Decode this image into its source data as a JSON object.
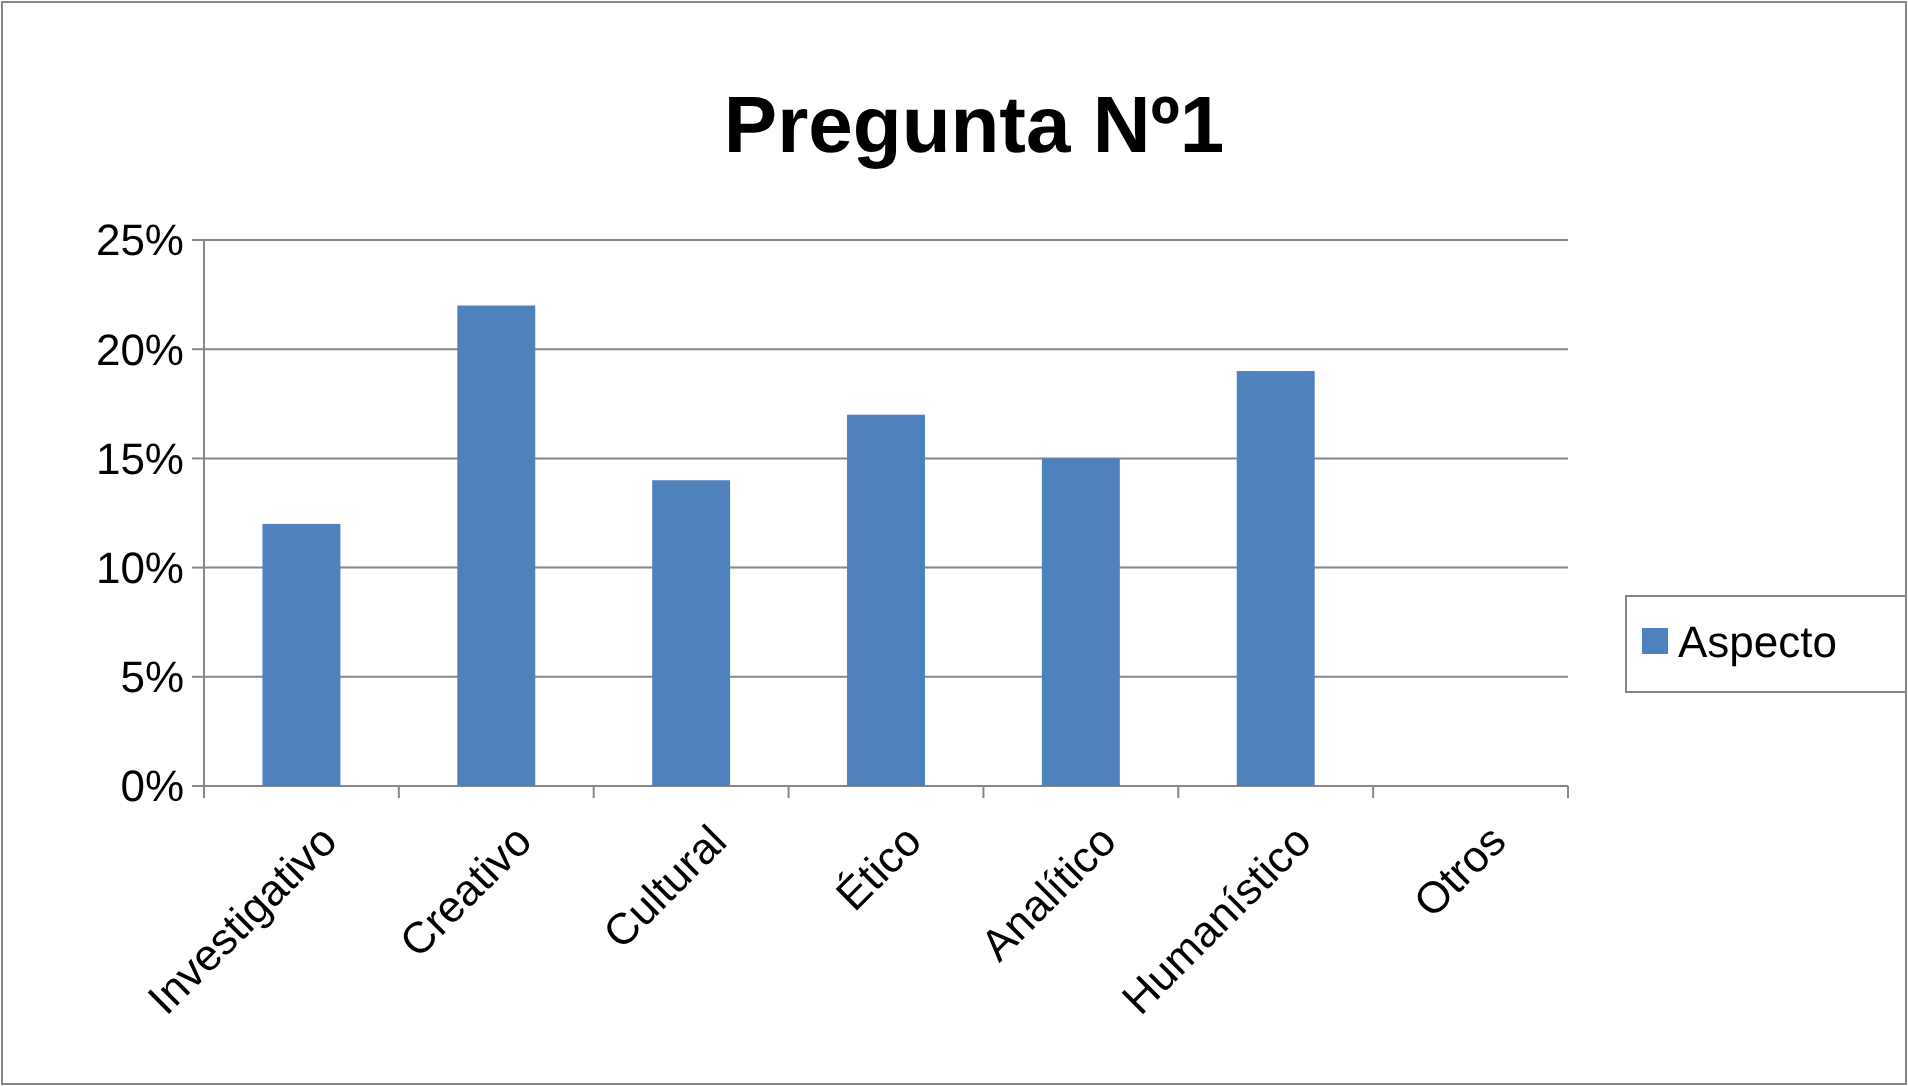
{
  "chart_data": {
    "type": "bar",
    "title": "Pregunta Nº1",
    "categories": [
      "Investigativo",
      "Creativo",
      "Cultural",
      "Ético",
      "Analítico",
      "Humanístico",
      "Otros"
    ],
    "series": [
      {
        "name": "Aspecto",
        "color": "#4f81bd",
        "values": [
          12,
          22,
          14,
          17,
          15,
          19,
          0
        ]
      }
    ],
    "ylim": [
      0,
      25
    ],
    "yticks": [
      {
        "value": 0,
        "label": "0%"
      },
      {
        "value": 5,
        "label": "5%"
      },
      {
        "value": 10,
        "label": "10%"
      },
      {
        "value": 15,
        "label": "15%"
      },
      {
        "value": 20,
        "label": "20%"
      },
      {
        "value": 25,
        "label": "25%"
      }
    ],
    "grid": "y",
    "legend": "right"
  }
}
